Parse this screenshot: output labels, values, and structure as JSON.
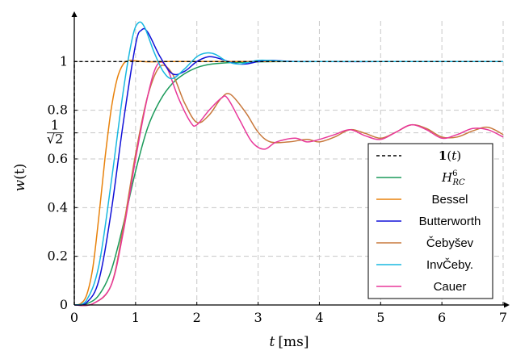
{
  "chart_data": {
    "type": "line",
    "xlabel": "t [ms]",
    "xlabel_var": "t",
    "xlabel_unit": "[ms]",
    "ylabel": "w(t)",
    "ylabel_var": "w",
    "ylabel_arg": "(t)",
    "xlim": [
      0,
      7
    ],
    "ylim": [
      0,
      1.18
    ],
    "xticks": [
      0,
      1,
      2,
      3,
      4,
      5,
      6,
      7
    ],
    "yticks": [
      0,
      0.2,
      0.4,
      0.6,
      0.8,
      1
    ],
    "ytick_labels": [
      "0",
      "0.2",
      "0.4",
      "0.6",
      "0.8",
      "1"
    ],
    "ytick_special": {
      "value": 0.7071,
      "numerator": "1",
      "denominator": "√2"
    },
    "grid": true,
    "legend_position": "bottom-right",
    "legend": [
      {
        "label": "1(t)",
        "color": "#000000",
        "dashed": true
      },
      {
        "label": "H⁶RC",
        "base": "H",
        "sup": "6",
        "sub": "RC",
        "color": "#1b9a5a"
      },
      {
        "label": "Bessel",
        "color": "#e8820c"
      },
      {
        "label": "Butterworth",
        "color": "#1010d8"
      },
      {
        "label": "Čebyšev",
        "color": "#c8783c"
      },
      {
        "label": "InvČeby.",
        "color": "#18b8e0"
      },
      {
        "label": "Cauer",
        "color": "#e8389a"
      }
    ],
    "series": [
      {
        "name": "1(t)",
        "color": "#000000",
        "dashed": true,
        "x": [
          0,
          0,
          7
        ],
        "y": [
          0,
          1,
          1
        ]
      },
      {
        "name": "H⁶RC",
        "color": "#1b9a5a",
        "x": [
          0,
          0.2,
          0.4,
          0.6,
          0.8,
          1.0,
          1.2,
          1.4,
          1.6,
          1.8,
          2.0,
          2.2,
          2.5,
          3.0,
          3.5,
          4.0,
          5.0,
          6.0,
          7.0
        ],
        "y": [
          0,
          0.005,
          0.04,
          0.14,
          0.33,
          0.55,
          0.73,
          0.84,
          0.91,
          0.95,
          0.975,
          0.988,
          0.995,
          0.999,
          1.0,
          1.0,
          1.0,
          1.0,
          1.0
        ]
      },
      {
        "name": "Bessel",
        "color": "#e8820c",
        "x": [
          0,
          0.1,
          0.2,
          0.3,
          0.4,
          0.5,
          0.6,
          0.7,
          0.8,
          0.9,
          1.0,
          1.2,
          1.5,
          2.0,
          3.0,
          7.0
        ],
        "y": [
          0,
          0.005,
          0.04,
          0.15,
          0.36,
          0.6,
          0.8,
          0.93,
          0.99,
          1.005,
          1.003,
          0.999,
          1.0,
          1.0,
          1.0,
          1.0
        ]
      },
      {
        "name": "Butterworth",
        "color": "#1010d8",
        "x": [
          0,
          0.2,
          0.4,
          0.6,
          0.8,
          1.0,
          1.1,
          1.2,
          1.4,
          1.6,
          1.8,
          2.0,
          2.2,
          2.4,
          2.6,
          2.8,
          3.0,
          3.2,
          3.5,
          4.0,
          5.0,
          6.0,
          7.0
        ],
        "y": [
          0,
          0.01,
          0.1,
          0.38,
          0.75,
          1.07,
          1.13,
          1.12,
          1.02,
          0.95,
          0.96,
          1.0,
          1.02,
          1.01,
          0.993,
          0.99,
          1.0,
          1.005,
          1.001,
          1.0,
          1.0,
          1.0,
          1.0
        ]
      },
      {
        "name": "Čebyšev",
        "color": "#c8783c",
        "x": [
          0,
          0.3,
          0.6,
          0.8,
          1.0,
          1.2,
          1.4,
          1.6,
          1.8,
          2.0,
          2.2,
          2.4,
          2.55,
          2.8,
          3.0,
          3.2,
          3.5,
          3.8,
          4.0,
          4.25,
          4.5,
          4.75,
          5.0,
          5.25,
          5.5,
          5.75,
          6.0,
          6.25,
          6.5,
          6.75,
          7.0
        ],
        "y": [
          0,
          0.005,
          0.08,
          0.32,
          0.62,
          0.86,
          0.98,
          0.95,
          0.83,
          0.75,
          0.78,
          0.85,
          0.865,
          0.79,
          0.71,
          0.67,
          0.67,
          0.68,
          0.67,
          0.69,
          0.72,
          0.705,
          0.685,
          0.71,
          0.74,
          0.725,
          0.69,
          0.69,
          0.715,
          0.73,
          0.7
        ]
      },
      {
        "name": "InvČeby.",
        "color": "#18b8e0",
        "x": [
          0,
          0.2,
          0.4,
          0.6,
          0.8,
          0.95,
          1.05,
          1.15,
          1.3,
          1.45,
          1.6,
          1.8,
          2.0,
          2.15,
          2.3,
          2.5,
          2.7,
          3.0,
          3.3,
          3.6,
          4.0,
          5.0,
          6.0,
          7.0
        ],
        "y": [
          0,
          0.02,
          0.16,
          0.5,
          0.88,
          1.1,
          1.16,
          1.14,
          1.04,
          0.96,
          0.93,
          0.97,
          1.02,
          1.035,
          1.03,
          1.0,
          0.99,
          1.005,
          1.003,
          1.0,
          1.0,
          1.0,
          1.0,
          1.0
        ]
      },
      {
        "name": "Cauer",
        "color": "#e8389a",
        "x": [
          0,
          0.3,
          0.6,
          0.8,
          1.0,
          1.2,
          1.35,
          1.5,
          1.7,
          1.9,
          2.0,
          2.2,
          2.4,
          2.5,
          2.7,
          2.9,
          3.1,
          3.3,
          3.6,
          3.8,
          4.0,
          4.25,
          4.5,
          4.75,
          5.0,
          5.25,
          5.5,
          5.75,
          6.0,
          6.25,
          6.5,
          6.75,
          7.0
        ],
        "y": [
          0,
          0.005,
          0.08,
          0.3,
          0.6,
          0.86,
          0.985,
          0.98,
          0.85,
          0.75,
          0.74,
          0.8,
          0.85,
          0.85,
          0.76,
          0.67,
          0.64,
          0.67,
          0.685,
          0.67,
          0.68,
          0.7,
          0.72,
          0.695,
          0.68,
          0.71,
          0.74,
          0.72,
          0.685,
          0.7,
          0.725,
          0.72,
          0.69
        ]
      }
    ]
  }
}
